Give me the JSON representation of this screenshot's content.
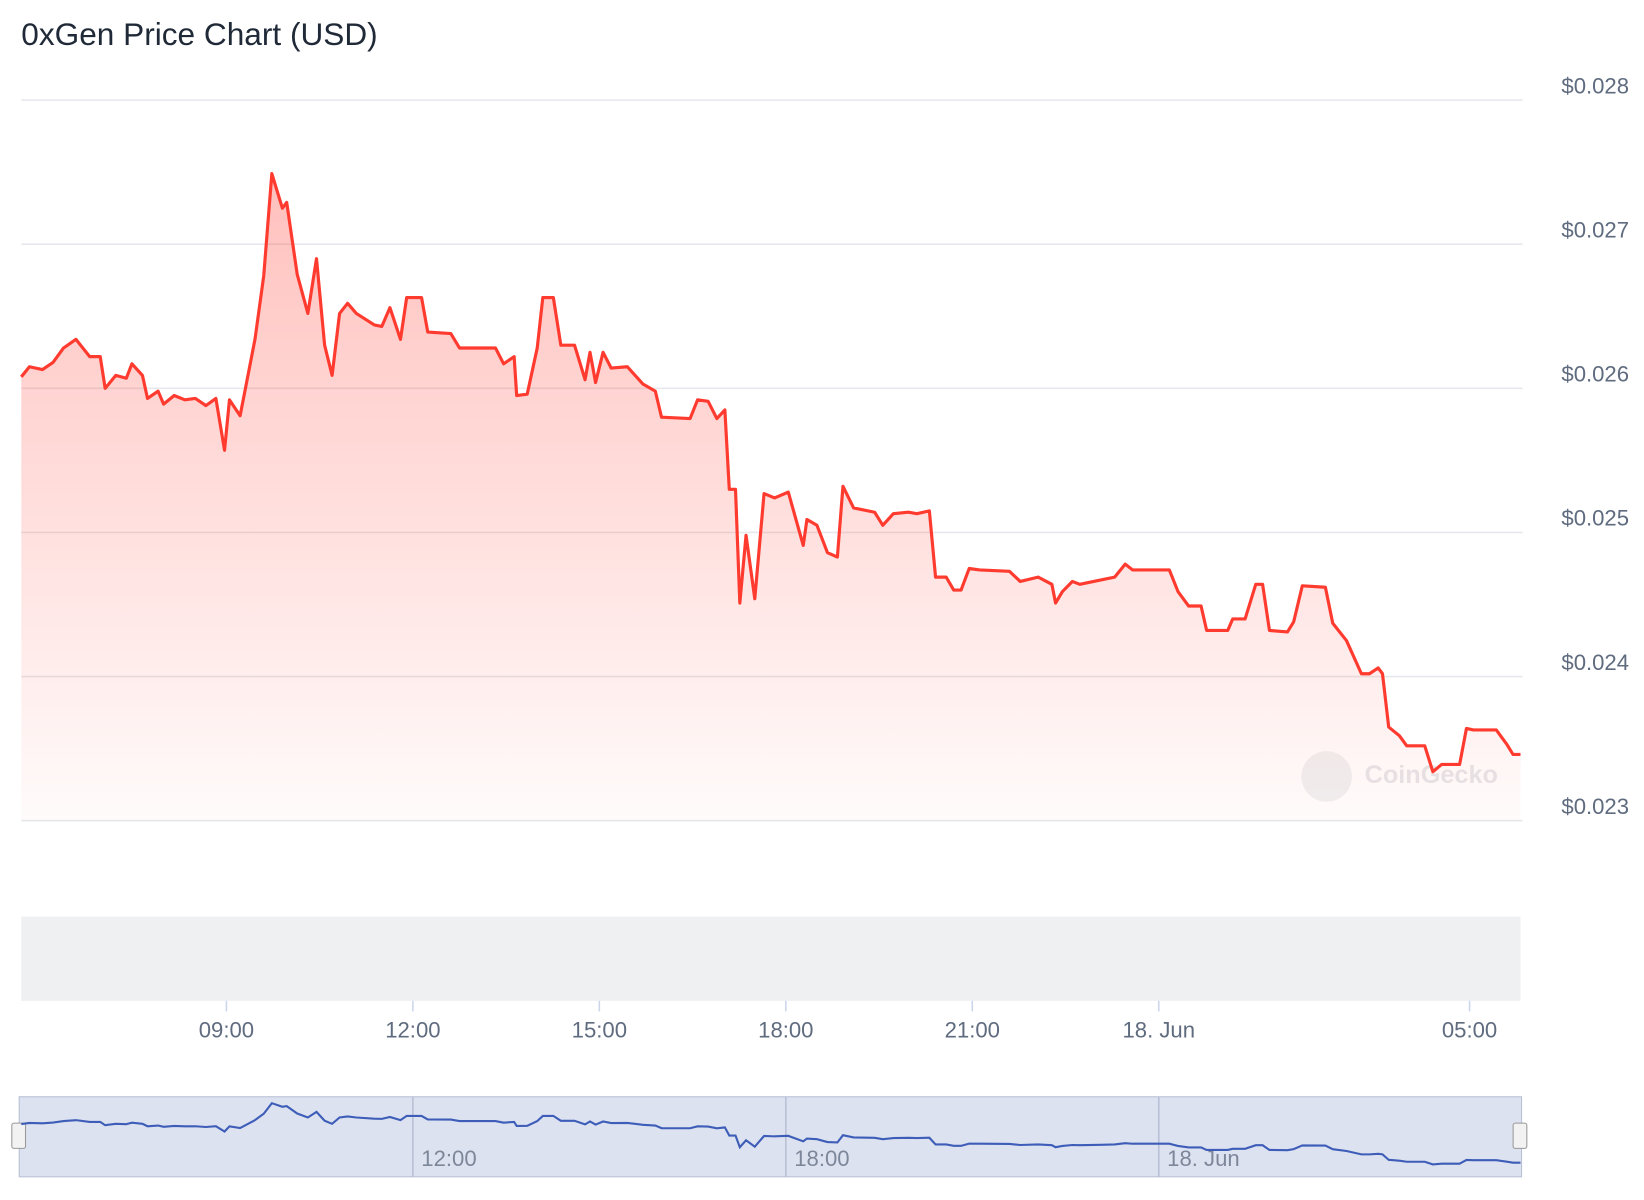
{
  "chart_data": {
    "type": "line",
    "title": "0xGen Price Chart (USD)",
    "watermark": "CoinGecko",
    "x": [
      5.7,
      5.83,
      6.04,
      6.21,
      6.38,
      6.58,
      6.8,
      6.97,
      7.05,
      7.22,
      7.39,
      7.48,
      7.65,
      7.73,
      7.9,
      7.99,
      8.16,
      8.33,
      8.5,
      8.67,
      8.83,
      8.97,
      9.05,
      9.22,
      9.46,
      9.6,
      9.73,
      9.9,
      9.97,
      10.14,
      10.31,
      10.45,
      10.58,
      10.7,
      10.82,
      10.95,
      11.09,
      11.38,
      11.5,
      11.63,
      11.8,
      11.9,
      12.14,
      12.24,
      12.61,
      12.75,
      13.33,
      13.46,
      13.63,
      13.67,
      13.84,
      14.0,
      14.09,
      14.26,
      14.38,
      14.6,
      14.77,
      14.85,
      14.94,
      15.06,
      15.19,
      15.45,
      15.7,
      15.9,
      16.0,
      16.46,
      16.58,
      16.75,
      16.89,
      17.02,
      17.09,
      17.19,
      17.26,
      17.36,
      17.5,
      17.65,
      17.82,
      18.04,
      18.28,
      18.34,
      18.5,
      18.67,
      18.83,
      18.92,
      19.09,
      19.43,
      19.56,
      19.73,
      19.97,
      20.11,
      20.31,
      20.41,
      20.58,
      20.7,
      20.82,
      20.95,
      21.12,
      21.6,
      21.77,
      22.06,
      22.28,
      22.34,
      22.45,
      22.61,
      22.73,
      23.07,
      23.29,
      23.46,
      23.58,
      24.17,
      24.31,
      24.48,
      24.68,
      24.77,
      25.11,
      25.19,
      25.39,
      25.56,
      25.67,
      25.78,
      26.07,
      26.17,
      26.31,
      26.68,
      26.8,
      27.02,
      27.26,
      27.39,
      27.53,
      27.6,
      27.7,
      27.87,
      27.99,
      28.28,
      28.41,
      28.55,
      28.84,
      28.95,
      29.06,
      29.43,
      29.6,
      29.7,
      29.82
    ],
    "series": [
      {
        "color": "#ff3b30",
        "values": [
          0.02608,
          0.02615,
          0.02613,
          0.02618,
          0.02628,
          0.02634,
          0.02622,
          0.02622,
          0.026,
          0.02609,
          0.02607,
          0.02617,
          0.02609,
          0.02593,
          0.02598,
          0.02589,
          0.02595,
          0.02592,
          0.02593,
          0.02588,
          0.02593,
          0.02557,
          0.02592,
          0.02581,
          0.02634,
          0.02678,
          0.02749,
          0.02725,
          0.02729,
          0.02679,
          0.02652,
          0.0269,
          0.0263,
          0.02609,
          0.02652,
          0.02659,
          0.02652,
          0.02644,
          0.02643,
          0.02656,
          0.02634,
          0.02663,
          0.02663,
          0.02639,
          0.02638,
          0.02628,
          0.02628,
          0.02617,
          0.02622,
          0.02595,
          0.02596,
          0.02628,
          0.02663,
          0.02663,
          0.0263,
          0.0263,
          0.02606,
          0.02625,
          0.02604,
          0.02625,
          0.02614,
          0.02615,
          0.02603,
          0.02598,
          0.0258,
          0.02579,
          0.02592,
          0.02591,
          0.02579,
          0.02585,
          0.0253,
          0.0253,
          0.02451,
          0.02498,
          0.02454,
          0.02527,
          0.02524,
          0.02528,
          0.02491,
          0.02509,
          0.02505,
          0.02486,
          0.02483,
          0.02532,
          0.02517,
          0.02514,
          0.02505,
          0.02513,
          0.02514,
          0.02513,
          0.02515,
          0.02469,
          0.02469,
          0.0246,
          0.0246,
          0.02475,
          0.02474,
          0.02473,
          0.02466,
          0.02469,
          0.02464,
          0.02451,
          0.02459,
          0.02466,
          0.02464,
          0.02467,
          0.02469,
          0.02478,
          0.02474,
          0.02474,
          0.02459,
          0.02449,
          0.02449,
          0.02432,
          0.02432,
          0.0244,
          0.0244,
          0.02464,
          0.02464,
          0.02432,
          0.02431,
          0.02438,
          0.02463,
          0.02462,
          0.02437,
          0.02425,
          0.02402,
          0.02402,
          0.02406,
          0.02402,
          0.02365,
          0.02359,
          0.02352,
          0.02352,
          0.02334,
          0.02339,
          0.02339,
          0.02364,
          0.02363,
          0.02363,
          0.02353,
          0.02346,
          0.02346
        ]
      }
    ],
    "xlim": [
      5.7,
      29.82
    ],
    "ylim": [
      0.023,
      0.028
    ],
    "xticks": [
      {
        "value": 9,
        "label": "09:00"
      },
      {
        "value": 12,
        "label": "12:00"
      },
      {
        "value": 15,
        "label": "15:00"
      },
      {
        "value": 18,
        "label": "18:00"
      },
      {
        "value": 21,
        "label": "21:00"
      },
      {
        "value": 24,
        "label": "18. Jun"
      },
      {
        "value": 29,
        "label": "05:00"
      }
    ],
    "yticks": [
      {
        "value": 0.023,
        "label": "$0.023"
      },
      {
        "value": 0.024,
        "label": "$0.024"
      },
      {
        "value": 0.025,
        "label": "$0.025"
      },
      {
        "value": 0.026,
        "label": "$0.026"
      },
      {
        "value": 0.027,
        "label": "$0.027"
      },
      {
        "value": 0.028,
        "label": "$0.028"
      }
    ],
    "navigator_xticks": [
      {
        "value": 12,
        "label": "12:00"
      },
      {
        "value": 18,
        "label": "18:00"
      },
      {
        "value": 24,
        "label": "18. Jun"
      }
    ],
    "grid": true
  }
}
